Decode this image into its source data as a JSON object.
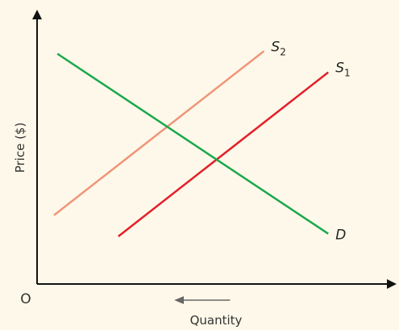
{
  "chart_data": {
    "type": "line",
    "title": "",
    "xlabel": "Quantity",
    "ylabel": "Price ($)",
    "origin_label": "O",
    "grid": false,
    "legend": "none",
    "xlim": [
      0,
      10
    ],
    "ylim": [
      0,
      10
    ],
    "series": [
      {
        "name": "S",
        "subscript": "2",
        "color": "#f0957a",
        "x": [
          0.5,
          6.7
        ],
        "y": [
          2.6,
          8.8
        ]
      },
      {
        "name": "S",
        "subscript": "1",
        "color": "#e41e2b",
        "x": [
          2.4,
          8.6
        ],
        "y": [
          1.8,
          8.0
        ]
      },
      {
        "name": "D",
        "subscript": "",
        "color": "#1aa84e",
        "x": [
          0.6,
          8.6
        ],
        "y": [
          8.7,
          1.9
        ]
      }
    ],
    "annotations": [
      {
        "type": "arrow",
        "meaning": "supply shifts left (quantity decreases)",
        "color": "#666666",
        "from": [
          5.7,
          0.5
        ],
        "to": [
          4.1,
          0.5
        ]
      }
    ]
  }
}
